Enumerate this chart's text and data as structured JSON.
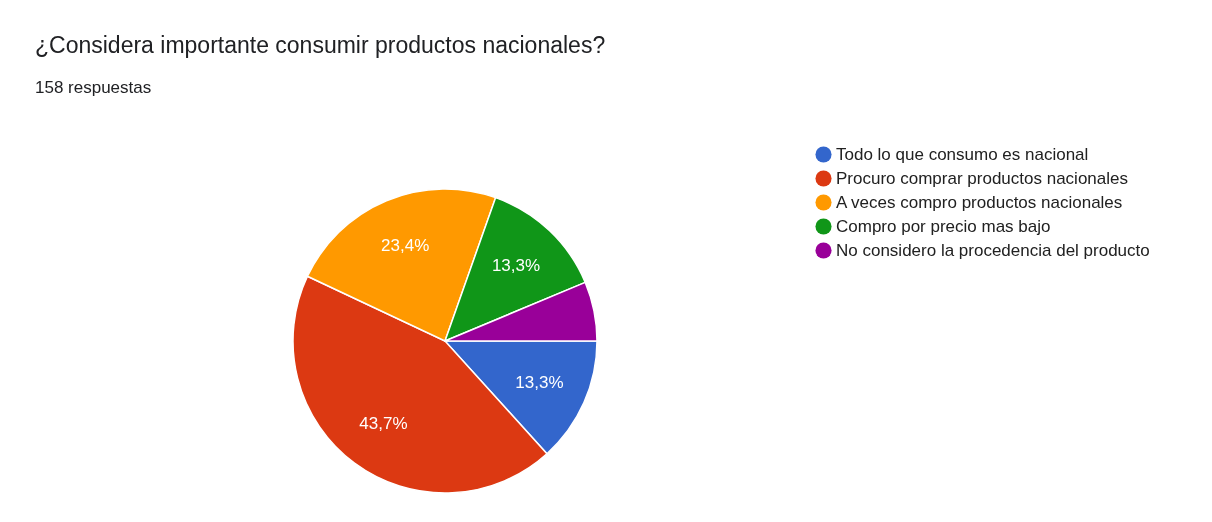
{
  "chart_data": {
    "type": "pie",
    "title": "¿Considera importante consumir productos nacionales?",
    "subtitle": "158 respuestas",
    "categories": [
      "Todo lo que consumo es nacional",
      "Procuro comprar productos nacionales",
      "A veces compro productos nacionales",
      "Compro por precio mas bajo",
      "No considero la procedencia del producto"
    ],
    "values": [
      13.3,
      43.7,
      23.4,
      13.3,
      6.3
    ],
    "colors": [
      "#3366cc",
      "#dc3912",
      "#ff9900",
      "#109618",
      "#990099"
    ],
    "value_labels": [
      "13,3%",
      "43,7%",
      "23,4%",
      "13,3%",
      null
    ],
    "legend": "right"
  }
}
